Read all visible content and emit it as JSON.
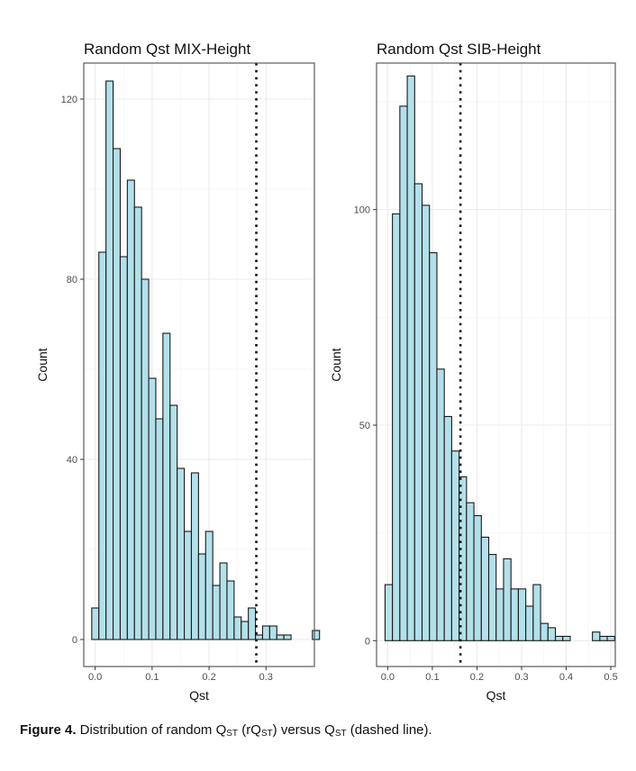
{
  "chart_data": [
    {
      "type": "bar",
      "title": "Random Qst MIX-Height",
      "xlabel": "Qst",
      "ylabel": "Count",
      "xlim": [
        -0.02,
        0.385
      ],
      "ylim": [
        -6,
        128
      ],
      "xticks": [
        0.0,
        0.1,
        0.2,
        0.3
      ],
      "xtick_labels": [
        "0.0",
        "0.1",
        "0.2",
        "0.3"
      ],
      "yticks": [
        0,
        40,
        80,
        120
      ],
      "ytick_labels": [
        "0",
        "40",
        "80",
        "120"
      ],
      "bin_start": -0.006,
      "bin_width": 0.0125,
      "values": [
        7,
        86,
        124,
        109,
        85,
        102,
        96,
        80,
        58,
        49,
        68,
        52,
        38,
        24,
        37,
        19,
        24,
        12,
        17,
        13,
        5,
        4,
        7,
        1,
        3,
        3,
        1,
        1,
        0,
        0,
        0,
        2
      ],
      "vline": 0.283,
      "vline_style": "dotted"
    },
    {
      "type": "bar",
      "title": "Random Qst SIB-Height",
      "xlabel": "Qst",
      "ylabel": "Count",
      "xlim": [
        -0.025,
        0.51
      ],
      "ylim": [
        -6,
        134
      ],
      "xticks": [
        0.0,
        0.1,
        0.2,
        0.3,
        0.4,
        0.5
      ],
      "xtick_labels": [
        "0.0",
        "0.1",
        "0.2",
        "0.3",
        "0.4",
        "0.5"
      ],
      "yticks": [
        0,
        50,
        100
      ],
      "ytick_labels": [
        "0",
        "50",
        "100"
      ],
      "bin_start": -0.006,
      "bin_width": 0.0166,
      "values": [
        13,
        99,
        124,
        131,
        106,
        101,
        90,
        63,
        52,
        44,
        38,
        32,
        29,
        24,
        20,
        12,
        19,
        12,
        12,
        8,
        13,
        4,
        3,
        1,
        1,
        0,
        0,
        0,
        2,
        1,
        1
      ],
      "vline": 0.163,
      "vline_style": "dotted"
    }
  ],
  "caption": {
    "label": "Figure 4.",
    "text_a": " Distribution of random Q",
    "sub_a": "ST",
    "text_b": " (rQ",
    "sub_b": "ST",
    "text_c": ") versus Q",
    "sub_c": "ST",
    "text_d": " (dashed line)."
  },
  "colors": {
    "bar_fill": "#b3e0ea",
    "bar_stroke": "#1a1a1a",
    "panel_border": "#4d4d4d",
    "grid_major": "#ebebeb",
    "grid_minor": "#f5f5f5",
    "tick_text": "#4d4d4d",
    "vline": "#111111"
  }
}
